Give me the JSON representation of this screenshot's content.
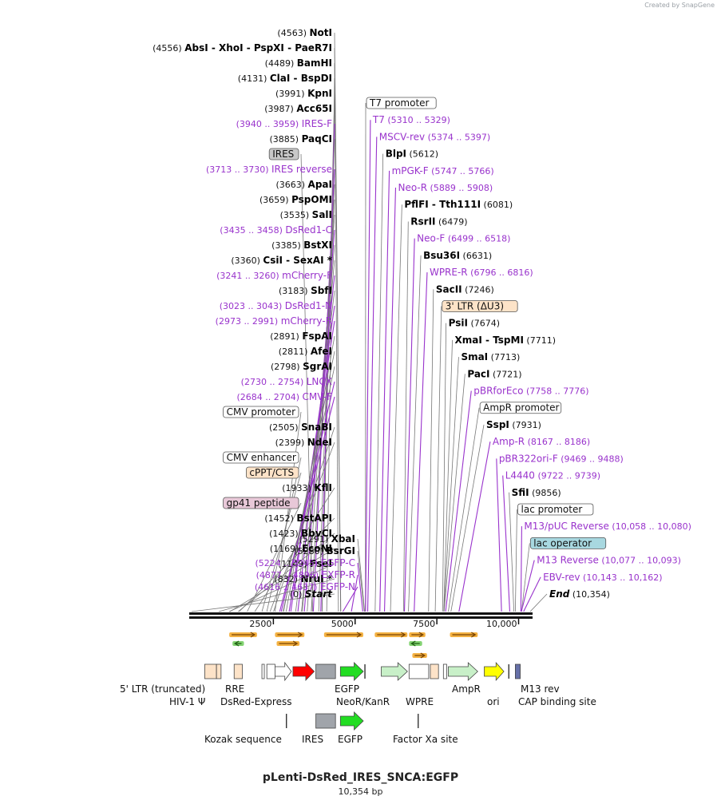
{
  "branding": "Created by SnapGene",
  "title": "pLenti-DsRed_IRES_SNCA:EGFP",
  "size_label": "10,354 bp",
  "colors": {
    "enzyme": "#000000",
    "primer": "#9933cc",
    "feature_label_bg": "#ffffff",
    "ires_bg": "#c8c8c8",
    "ltr_bg": "#fde3c8",
    "cppt_bg": "#fde3c8",
    "gp41_bg": "#e8c8d8",
    "lac_operator_bg": "#a8d8e0",
    "orf": "#f2a522",
    "red": "#ff0000",
    "green": "#22dd22",
    "lightgreen": "#c8f0c8",
    "yellow": "#ffff00",
    "grey": "#a0a4aa",
    "peach": "#fde3c8"
  },
  "map": {
    "total_bp": 10354,
    "ticks": [
      {
        "bp": 2500,
        "label": "2500"
      },
      {
        "bp": 5000,
        "label": "5000"
      },
      {
        "bp": 7500,
        "label": "7500"
      },
      {
        "bp": 10000,
        "label": "10,000"
      }
    ]
  },
  "left_labels": [
    {
      "kind": "enzyme",
      "pos": "(4563)",
      "name": "NotI",
      "bp": 4563
    },
    {
      "kind": "enzyme",
      "pos": "(4556)",
      "name": "AbsI  -  XhoI  -  PspXI  -  PaeR7I",
      "bp": 4556
    },
    {
      "kind": "enzyme",
      "pos": "(4489)",
      "name": "BamHI",
      "bp": 4489
    },
    {
      "kind": "enzyme",
      "pos": "(4131)",
      "name": "ClaI  -  BspDI",
      "bp": 4131
    },
    {
      "kind": "enzyme",
      "pos": "(3991)",
      "name": "KpnI",
      "bp": 3991
    },
    {
      "kind": "enzyme",
      "pos": "(3987)",
      "name": "Acc65I",
      "bp": 3987
    },
    {
      "kind": "primer",
      "pos": "(3940 .. 3959)",
      "name": "IRES-F",
      "bp": 3950
    },
    {
      "kind": "enzyme",
      "pos": "(3885)",
      "name": "PaqCI",
      "bp": 3885
    },
    {
      "kind": "feature",
      "pos": "",
      "name": "IRES",
      "bp": 3700,
      "style": "ires"
    },
    {
      "kind": "primer",
      "pos": "(3713 .. 3730)",
      "name": "IRES reverse",
      "bp": 3721
    },
    {
      "kind": "enzyme",
      "pos": "(3663)",
      "name": "ApaI",
      "bp": 3663
    },
    {
      "kind": "enzyme",
      "pos": "(3659)",
      "name": "PspOMI",
      "bp": 3659
    },
    {
      "kind": "enzyme",
      "pos": "(3535)",
      "name": "SalI",
      "bp": 3535
    },
    {
      "kind": "primer",
      "pos": "(3435 .. 3458)",
      "name": "DsRed1-C",
      "bp": 3446
    },
    {
      "kind": "enzyme",
      "pos": "(3385)",
      "name": "BstXI",
      "bp": 3385
    },
    {
      "kind": "enzyme",
      "pos": "(3360)",
      "name": "CsiI  -  SexAI *",
      "bp": 3360
    },
    {
      "kind": "primer",
      "pos": "(3241 .. 3260)",
      "name": "mCherry-F",
      "bp": 3250
    },
    {
      "kind": "enzyme",
      "pos": "(3183)",
      "name": "SbfI",
      "bp": 3183
    },
    {
      "kind": "primer",
      "pos": "(3023 .. 3043)",
      "name": "DsRed1-N",
      "bp": 3033
    },
    {
      "kind": "primer",
      "pos": "(2973 .. 2991)",
      "name": "mCherry-R",
      "bp": 2982
    },
    {
      "kind": "enzyme",
      "pos": "(2891)",
      "name": "FspAI",
      "bp": 2891
    },
    {
      "kind": "enzyme",
      "pos": "(2811)",
      "name": "AfeI",
      "bp": 2811
    },
    {
      "kind": "enzyme",
      "pos": "(2798)",
      "name": "SgrAI",
      "bp": 2798
    },
    {
      "kind": "primer",
      "pos": "(2730 .. 2754)",
      "name": "LNCX",
      "bp": 2742
    },
    {
      "kind": "primer",
      "pos": "(2684 .. 2704)",
      "name": "CMV-F",
      "bp": 2694
    },
    {
      "kind": "feature",
      "pos": "",
      "name": "CMV promoter",
      "bp": 2550,
      "style": "plain"
    },
    {
      "kind": "enzyme",
      "pos": "(2505)",
      "name": "SnaBI",
      "bp": 2505
    },
    {
      "kind": "enzyme",
      "pos": "(2399)",
      "name": "NdeI",
      "bp": 2399
    },
    {
      "kind": "feature",
      "pos": "",
      "name": "CMV enhancer",
      "bp": 2300,
      "style": "plain"
    },
    {
      "kind": "feature",
      "pos": "",
      "name": "cPPT/CTS",
      "bp": 2150,
      "style": "cppt"
    },
    {
      "kind": "enzyme",
      "pos": "(1933)",
      "name": "KflI",
      "bp": 1933
    },
    {
      "kind": "feature",
      "pos": "",
      "name": "gp41 peptide",
      "bp": 1700,
      "style": "gp41"
    },
    {
      "kind": "enzyme",
      "pos": "(1452)",
      "name": "BstAPI",
      "bp": 1452
    },
    {
      "kind": "enzyme",
      "pos": "(1423)",
      "name": "BbvCI",
      "bp": 1423
    },
    {
      "kind": "enzyme",
      "pos": "(1169)",
      "name": "EcoNI",
      "bp": 1169
    },
    {
      "kind": "enzyme",
      "pos": "(1149)",
      "name": "FseI",
      "bp": 1149
    },
    {
      "kind": "enzyme",
      "pos": "(832)",
      "name": "NruI *",
      "bp": 832
    },
    {
      "kind": "start",
      "pos": "(0)",
      "name": "Start",
      "bp": 0
    }
  ],
  "mid_labels": [
    {
      "kind": "enzyme",
      "pos": "(5291)",
      "name": "XbaI",
      "bp": 5291
    },
    {
      "kind": "enzyme",
      "pos": "(5280)",
      "name": "BsrGI",
      "bp": 5280
    },
    {
      "kind": "primer",
      "pos": "(5224 .. 5245)",
      "name": "EGFP-C",
      "bp": 5234
    },
    {
      "kind": "primer",
      "pos": "(4877 .. 4896)",
      "name": "EXFP-R",
      "bp": 4886
    },
    {
      "kind": "primer",
      "pos": "(4616 .. 4637)",
      "name": "EGFP-N",
      "bp": 4626
    }
  ],
  "right_labels": [
    {
      "kind": "feature",
      "pos": "",
      "name": "T7 promoter",
      "bp": 5315,
      "style": "plain"
    },
    {
      "kind": "primer",
      "pos": "(5310 .. 5329)",
      "name": "T7",
      "bp": 5319
    },
    {
      "kind": "primer",
      "pos": "(5374 .. 5397)",
      "name": "MSCV-rev",
      "bp": 5385
    },
    {
      "kind": "enzyme",
      "pos": "(5612)",
      "name": "BlpI",
      "bp": 5612
    },
    {
      "kind": "primer",
      "pos": "(5747 .. 5766)",
      "name": "mPGK-F",
      "bp": 5756
    },
    {
      "kind": "primer",
      "pos": "(5889 .. 5908)",
      "name": "Neo-R",
      "bp": 5898
    },
    {
      "kind": "enzyme",
      "pos": "(6081)",
      "name": "PflFI  -  Tth111I",
      "bp": 6081
    },
    {
      "kind": "enzyme",
      "pos": "(6479)",
      "name": "RsrII",
      "bp": 6479
    },
    {
      "kind": "primer",
      "pos": "(6499 .. 6518)",
      "name": "Neo-F",
      "bp": 6508
    },
    {
      "kind": "enzyme",
      "pos": "(6631)",
      "name": "Bsu36I",
      "bp": 6631
    },
    {
      "kind": "primer",
      "pos": "(6796 .. 6816)",
      "name": "WPRE-R",
      "bp": 6806
    },
    {
      "kind": "enzyme",
      "pos": "(7246)",
      "name": "SacII",
      "bp": 7246
    },
    {
      "kind": "feature",
      "pos": "",
      "name": "3' LTR (ΔU3)",
      "bp": 7450,
      "style": "ltr"
    },
    {
      "kind": "enzyme",
      "pos": "(7674)",
      "name": "PsiI",
      "bp": 7674
    },
    {
      "kind": "enzyme",
      "pos": "(7711)",
      "name": "XmaI  -  TspMI",
      "bp": 7711
    },
    {
      "kind": "enzyme",
      "pos": "(7713)",
      "name": "SmaI",
      "bp": 7713
    },
    {
      "kind": "enzyme",
      "pos": "(7721)",
      "name": "PacI",
      "bp": 7721
    },
    {
      "kind": "primer",
      "pos": "(7758 .. 7776)",
      "name": "pBRforEco",
      "bp": 7767
    },
    {
      "kind": "feature",
      "pos": "",
      "name": "AmpR promoter",
      "bp": 7850,
      "style": "plain"
    },
    {
      "kind": "enzyme",
      "pos": "(7931)",
      "name": "SspI",
      "bp": 7931
    },
    {
      "kind": "primer",
      "pos": "(8167 .. 8186)",
      "name": "Amp-R",
      "bp": 8176
    },
    {
      "kind": "primer",
      "pos": "(9469 .. 9488)",
      "name": "pBR322ori-F",
      "bp": 9478
    },
    {
      "kind": "primer",
      "pos": "(9722 .. 9739)",
      "name": "L4440",
      "bp": 9730
    },
    {
      "kind": "enzyme",
      "pos": "(9856)",
      "name": "SfiI",
      "bp": 9856
    },
    {
      "kind": "feature",
      "pos": "",
      "name": "lac promoter",
      "bp": 9900,
      "style": "plain"
    },
    {
      "kind": "primer",
      "pos": "(10,058 .. 10,080)",
      "name": "M13/pUC Reverse",
      "bp": 10069
    },
    {
      "kind": "feature",
      "pos": "",
      "name": "lac operator",
      "bp": 10090,
      "style": "lacop"
    },
    {
      "kind": "primer",
      "pos": "(10,077 .. 10,093)",
      "name": "M13 Reverse",
      "bp": 10085
    },
    {
      "kind": "primer",
      "pos": "(10,143 .. 10,162)",
      "name": "EBV-rev",
      "bp": 10152
    },
    {
      "kind": "end",
      "pos": "(10,354)",
      "name": "End",
      "bp": 10354
    }
  ],
  "orfs": [
    {
      "start": 1150,
      "end": 2000,
      "row": 0,
      "dir": "fwd"
    },
    {
      "start": 1250,
      "end": 1600,
      "row": 1,
      "dir": "rev"
    },
    {
      "start": 2550,
      "end": 3450,
      "row": 0,
      "dir": "fwd"
    },
    {
      "start": 2600,
      "end": 3300,
      "row": 1,
      "dir": "fwd"
    },
    {
      "start": 4050,
      "end": 5250,
      "row": 0,
      "dir": "fwd"
    },
    {
      "start": 5600,
      "end": 6600,
      "row": 0,
      "dir": "fwd"
    },
    {
      "start": 6650,
      "end": 7150,
      "row": 0,
      "dir": "fwd"
    },
    {
      "start": 6650,
      "end": 7050,
      "row": 1,
      "dir": "rev"
    },
    {
      "start": 6750,
      "end": 7200,
      "row": 2,
      "dir": "fwd"
    },
    {
      "start": 7900,
      "end": 8750,
      "row": 0,
      "dir": "fwd"
    }
  ],
  "features": [
    {
      "start": 400,
      "end": 760,
      "row": 0,
      "shape": "rect",
      "color": "peach"
    },
    {
      "start": 760,
      "end": 900,
      "row": 0,
      "shape": "rect",
      "color": "peach"
    },
    {
      "start": 1300,
      "end": 1550,
      "row": 0,
      "shape": "rect",
      "color": "peach"
    },
    {
      "start": 2150,
      "end": 2200,
      "row": 0,
      "shape": "rect",
      "color": "white"
    },
    {
      "start": 2300,
      "end": 2550,
      "row": 0,
      "shape": "rect",
      "color": "white"
    },
    {
      "start": 2550,
      "end": 3050,
      "row": 0,
      "shape": "arrow",
      "color": "white"
    },
    {
      "start": 3100,
      "end": 3750,
      "row": 0,
      "shape": "arrow",
      "color": "red"
    },
    {
      "start": 3800,
      "end": 4400,
      "row": 0,
      "shape": "rect",
      "color": "grey"
    },
    {
      "start": 4550,
      "end": 5250,
      "row": 0,
      "shape": "arrow",
      "color": "green"
    },
    {
      "start": 5300,
      "end": 5340,
      "row": 0,
      "shape": "tick"
    },
    {
      "start": 5800,
      "end": 6600,
      "row": 0,
      "shape": "arrow",
      "color": "lightgreen"
    },
    {
      "start": 6650,
      "end": 7250,
      "row": 0,
      "shape": "rect",
      "color": "white"
    },
    {
      "start": 7300,
      "end": 7550,
      "row": 0,
      "shape": "rect",
      "color": "peach"
    },
    {
      "start": 7700,
      "end": 7800,
      "row": 0,
      "shape": "rect",
      "color": "white"
    },
    {
      "start": 7850,
      "end": 8750,
      "row": 0,
      "shape": "arrow",
      "color": "lightgreen"
    },
    {
      "start": 8950,
      "end": 9550,
      "row": 0,
      "shape": "arrow",
      "color": "yellow"
    },
    {
      "start": 9700,
      "end": 9740,
      "row": 0,
      "shape": "tick"
    },
    {
      "start": 9900,
      "end": 10050,
      "row": 0,
      "shape": "rect",
      "color": "slate"
    },
    {
      "start": 2900,
      "end": 2920,
      "row": 1,
      "shape": "tick"
    },
    {
      "start": 3800,
      "end": 4400,
      "row": 1,
      "shape": "rect",
      "color": "grey"
    },
    {
      "start": 4550,
      "end": 5250,
      "row": 1,
      "shape": "arrow",
      "color": "green"
    },
    {
      "start": 6930,
      "end": 6950,
      "row": 1,
      "shape": "tick"
    }
  ],
  "feature_labels": [
    {
      "text": "5' LTR (truncated)",
      "bp": 400,
      "row": 0
    },
    {
      "text": "HIV-1 Ψ",
      "bp": 400,
      "row": 1
    },
    {
      "text": "RRE",
      "bp": 1300,
      "row": 0
    },
    {
      "text": "DsRed-Express",
      "bp": 2400,
      "row": 1
    },
    {
      "text": "EGFP",
      "bp": 4300,
      "row": 0
    },
    {
      "text": "NeoR/KanR",
      "bp": 4600,
      "row": 1
    },
    {
      "text": "WPRE",
      "bp": 6700,
      "row": 1
    },
    {
      "text": "AmpR",
      "bp": 7950,
      "row": 0
    },
    {
      "text": "ori",
      "bp": 9100,
      "row": 1
    },
    {
      "text": "M13 rev",
      "bp": 9980,
      "row": 0
    },
    {
      "text": "CAP binding site",
      "bp": 9980,
      "row": 1
    },
    {
      "text": "Kozak sequence",
      "bp": 2450,
      "row": 2
    },
    {
      "text": "IRES",
      "bp": 3850,
      "row": 2
    },
    {
      "text": "EGFP",
      "bp": 4550,
      "row": 2
    },
    {
      "text": "Factor Xa site",
      "bp": 6500,
      "row": 2
    }
  ]
}
